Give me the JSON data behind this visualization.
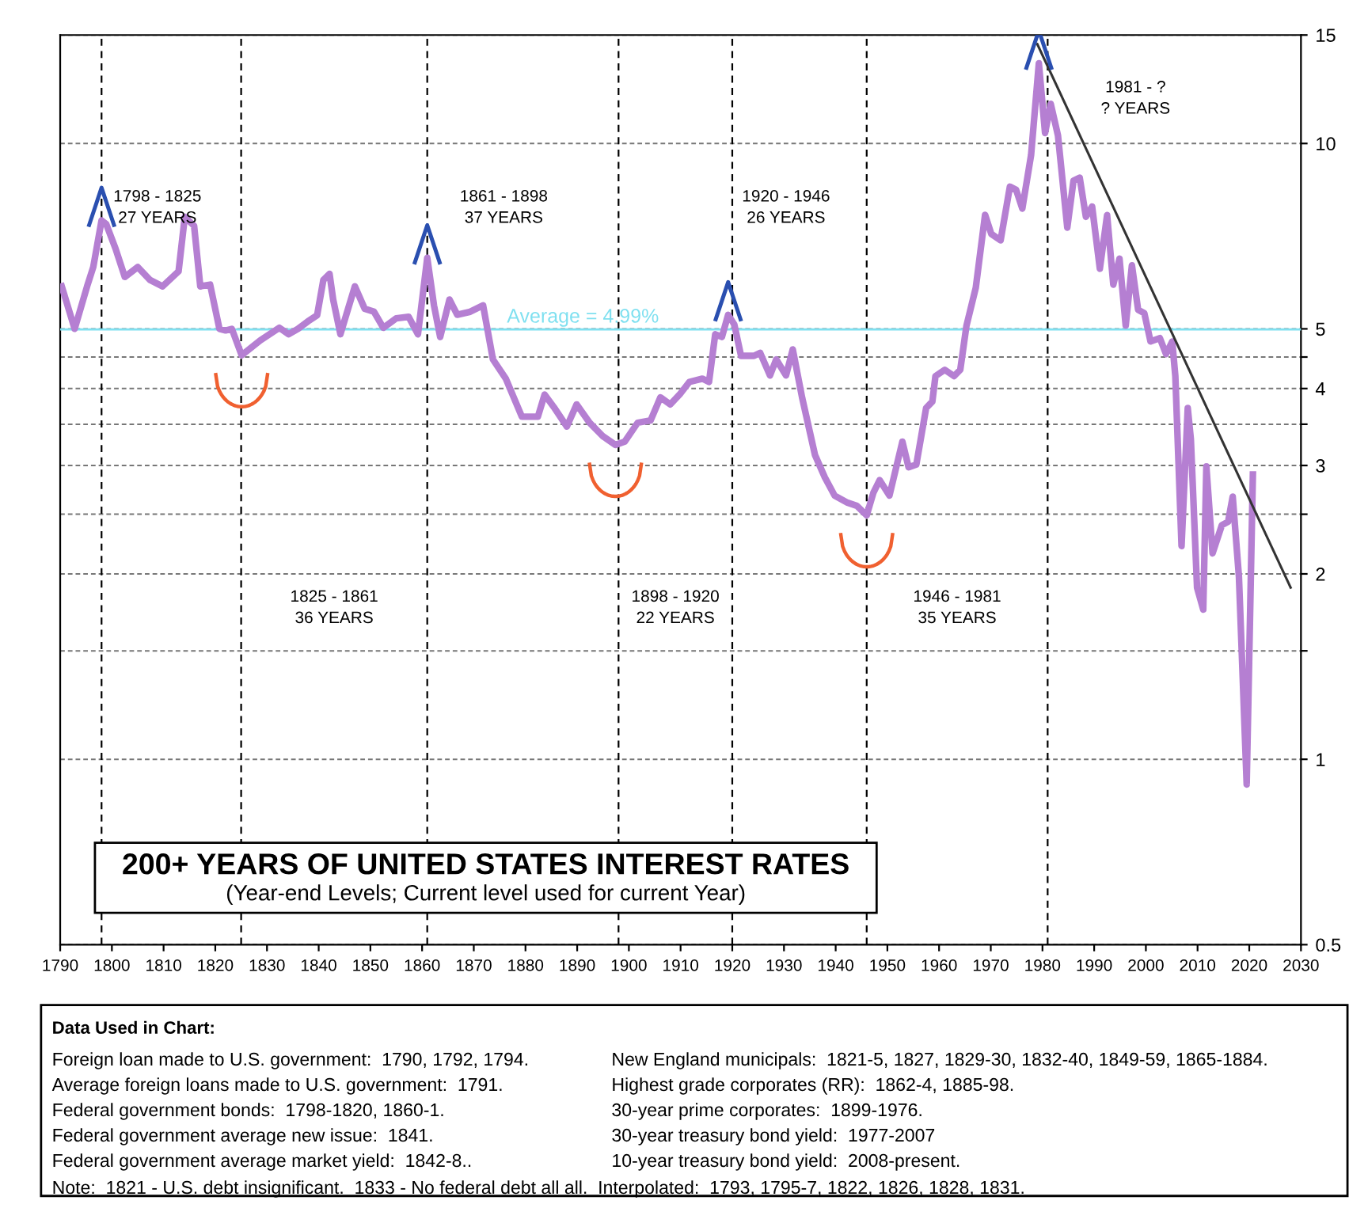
{
  "chart_data": {
    "type": "line",
    "title": "200+ YEARS OF UNITED STATES INTEREST RATES",
    "subtitle": "(Year-end Levels; Current level used for current Year)",
    "series": [
      {
        "color": "#b57fd2",
        "x": [
          1790.3,
          1792.8,
          1795.2,
          1796.4,
          1798,
          1798.9,
          1800.7,
          1802.5,
          1805,
          1807.4,
          1809.8,
          1812.9,
          1814.1,
          1815.9,
          1817.1,
          1819,
          1820.8,
          1822,
          1823.2,
          1825.1,
          1828.7,
          1832.4,
          1834.2,
          1836,
          1837.9,
          1839.7,
          1840.9,
          1842.1,
          1842.8,
          1844.2,
          1847,
          1848.9,
          1850.7,
          1852.5,
          1855,
          1857.4,
          1859.2,
          1861,
          1862.3,
          1863.5,
          1865.3,
          1866.8,
          1869.3,
          1871.8,
          1873.7,
          1876.2,
          1879.3,
          1882.4,
          1883.7,
          1885.5,
          1888,
          1889.9,
          1892.4,
          1894.9,
          1897.4,
          1899.2,
          1901.7,
          1904.2,
          1906.1,
          1908,
          1909.8,
          1911.7,
          1914.2,
          1915.5,
          1916.7,
          1918,
          1919.2,
          1920.4,
          1921.7,
          1924.2,
          1925.4,
          1927.3,
          1928.5,
          1930.4,
          1931.7,
          1933.5,
          1936,
          1937.9,
          1939.8,
          1942.3,
          1944.1,
          1946,
          1947.3,
          1948.5,
          1950.4,
          1952.9,
          1954.1,
          1955.6,
          1957.5,
          1958.7,
          1959.3,
          1961.1,
          1962.9,
          1964.1,
          1965.3,
          1967.1,
          1968.9,
          1970.1,
          1971.9,
          1973.7,
          1974.9,
          1976.1,
          1977.8,
          1979.3,
          1980.5,
          1981.6,
          1983,
          1984.8,
          1986,
          1987.2,
          1988.4,
          1989.6,
          1991.1,
          1992.5,
          1993.7,
          1994.9,
          1996.1,
          1997.3,
          1998.5,
          1999.7,
          2000.9,
          2002.7,
          2003.9,
          2005.1,
          2005.7,
          2006.9,
          2008.1,
          2008.7,
          2009.9,
          2011.1,
          2011.7,
          2012.9,
          2014.7,
          2015.9,
          2016.8,
          2018,
          2019.5,
          2020.7
        ],
        "values": [
          5.86,
          5.0,
          5.86,
          6.3,
          7.5,
          7.4,
          6.75,
          6.07,
          6.3,
          6.0,
          5.86,
          6.2,
          7.6,
          7.35,
          5.86,
          5.9,
          5.0,
          4.97,
          5.0,
          4.53,
          4.79,
          5.02,
          4.9,
          5.0,
          5.14,
          5.26,
          6.0,
          6.14,
          5.58,
          4.9,
          5.86,
          5.39,
          5.33,
          5.02,
          5.2,
          5.23,
          4.9,
          6.52,
          5.46,
          4.85,
          5.58,
          5.27,
          5.33,
          5.46,
          4.46,
          4.15,
          3.6,
          3.6,
          3.91,
          3.73,
          3.47,
          3.77,
          3.52,
          3.35,
          3.24,
          3.28,
          3.52,
          3.55,
          3.87,
          3.77,
          3.91,
          4.1,
          4.15,
          4.1,
          4.9,
          4.85,
          5.27,
          5.08,
          4.52,
          4.52,
          4.57,
          4.2,
          4.46,
          4.2,
          4.63,
          3.87,
          3.12,
          2.87,
          2.68,
          2.61,
          2.58,
          2.49,
          2.71,
          2.84,
          2.68,
          3.28,
          2.98,
          3.01,
          3.72,
          3.81,
          4.19,
          4.29,
          4.19,
          4.29,
          5.06,
          5.83,
          7.66,
          7.13,
          6.96,
          8.51,
          8.41,
          7.84,
          9.58,
          13.5,
          10.4,
          11.6,
          10.3,
          7.3,
          8.7,
          8.8,
          7.6,
          7.9,
          6.26,
          7.65,
          5.9,
          6.5,
          5.06,
          6.34,
          5.37,
          5.3,
          4.77,
          4.83,
          4.55,
          4.77,
          4.19,
          2.22,
          3.72,
          3.31,
          1.9,
          1.75,
          2.99,
          2.16,
          2.4,
          2.43,
          2.67,
          1.98,
          0.91,
          2.9
        ]
      },
      {
        "type": "line",
        "color": "#333333",
        "x": [
          1979,
          2028
        ],
        "values": [
          14.5,
          1.9
        ]
      }
    ],
    "log": "y",
    "xlim": [
      1790,
      2030
    ],
    "xticks": [
      1790,
      1800,
      1810,
      1820,
      1830,
      1840,
      1850,
      1860,
      1870,
      1880,
      1890,
      1900,
      1910,
      1920,
      1930,
      1940,
      1950,
      1960,
      1970,
      1980,
      1990,
      2000,
      2010,
      2020,
      2030
    ],
    "ylim": [
      0.5,
      15
    ],
    "yticks": [
      0.5,
      1,
      {
        "value": 1.5,
        "label": null
      },
      2,
      {
        "value": 2.5,
        "label": null
      },
      3,
      {
        "value": 3.5,
        "label": null
      },
      4,
      {
        "value": 4.5,
        "label": null
      },
      5,
      10,
      15
    ],
    "grid": "y",
    "marker": "none",
    "line_style": "solid",
    "ref_lines": [
      {
        "axis": "x",
        "value": 1798,
        "color": "#000000",
        "line_style": "dashed"
      },
      {
        "axis": "x",
        "value": 1825,
        "color": "#000000",
        "line_style": "dashed"
      },
      {
        "axis": "x",
        "value": 1861,
        "color": "#000000",
        "line_style": "dashed"
      },
      {
        "axis": "x",
        "value": 1898,
        "color": "#000000",
        "line_style": "dashed"
      },
      {
        "axis": "x",
        "value": 1920,
        "color": "#000000",
        "line_style": "dashed"
      },
      {
        "axis": "x",
        "value": 1946,
        "color": "#000000",
        "line_style": "dashed"
      },
      {
        "axis": "x",
        "value": 1981,
        "color": "#000000",
        "line_style": "dashed"
      },
      {
        "axis": "y",
        "value": 4.99,
        "label": "Average = 4.99%",
        "color": "#7fe0f0",
        "line_style": "solid"
      }
    ],
    "annotations": [
      "1798 - 1825\n27 YEARS",
      "1825 - 1861\n36 YEARS",
      "1861 - 1898\n37 YEARS",
      "1898 - 1920\n22 YEARS",
      "1920 - 1946\n26 YEARS",
      "1946 - 1981\n35 YEARS",
      "1981 - ?\n? YEARS",
      "Data Used in Chart:",
      "Foreign loan made to U.S. government:  1790, 1792, 1794.",
      "Average foreign loans made to U.S. government:  1791.",
      "Federal government bonds:  1798-1820, 1860-1.",
      "Federal government average new issue:  1841.",
      "Federal government average market yield:  1842-8..",
      "New England municipals:  1821-5, 1827, 1829-30, 1832-40, 1849-59, 1865-1884.",
      "Highest grade corporates (RR):  1862-4, 1885-98.",
      "30-year prime corporates:  1899-1976.",
      "30-year treasury bond yield:  1977-2007",
      "10-year treasury bond yield:  2008-present.",
      "Note:  1821 - U.S. debt insignificant.  1833 - No federal debt all all.  Interpolated:  1793, 1795-7, 1822, 1826, 1828, 1831."
    ]
  }
}
